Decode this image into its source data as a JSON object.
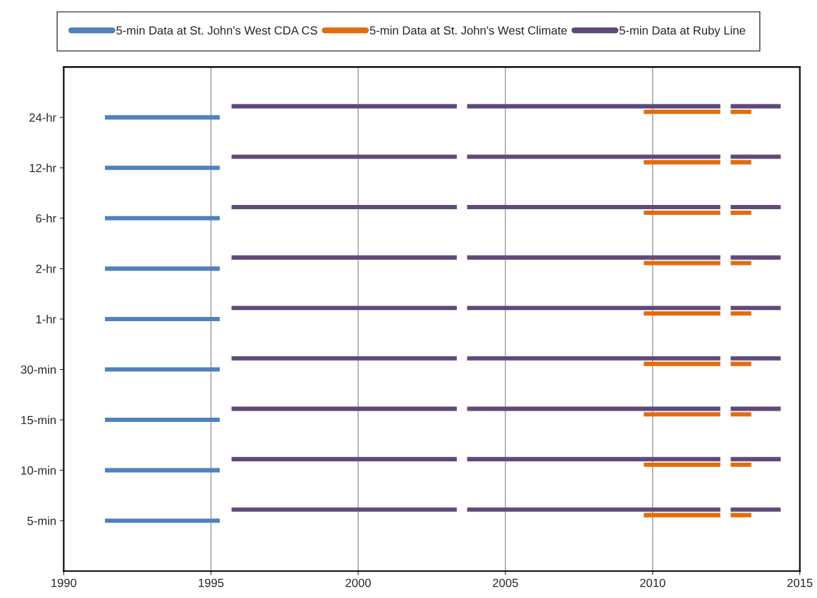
{
  "chart_data": {
    "type": "bar",
    "orientation": "horizontal",
    "categories": [
      "24-hr",
      "12-hr",
      "6-hr",
      "2-hr",
      "1-hr",
      "30-min",
      "15-min",
      "10-min",
      "5-min"
    ],
    "xlim": [
      1990,
      2015
    ],
    "xticks": [
      1990,
      1995,
      2000,
      2005,
      2010,
      2015
    ],
    "grid": "x",
    "legend": "top",
    "series": [
      {
        "name": "5-min Data at St. John's West CDA CS",
        "color": "#4f81bd",
        "base": [
          1991.4,
          1991.4,
          1991.4,
          1991.4,
          1991.4,
          1991.4,
          1991.4,
          1991.4,
          1991.4
        ],
        "values": [
          3.9,
          3.9,
          3.9,
          3.9,
          3.9,
          3.9,
          3.9,
          3.9,
          3.9
        ]
      },
      {
        "name": "5-min Data at St. John's West Climate",
        "color": "#e46c0a",
        "base": [
          2009.7,
          2009.7,
          2009.7,
          2009.7,
          2009.7,
          2009.7,
          2009.7,
          2009.7,
          2009.7
        ],
        "values": [
          2.6,
          2.6,
          2.6,
          2.6,
          2.6,
          2.6,
          2.6,
          2.6,
          2.6
        ]
      },
      {
        "color": "#e46c0a",
        "base": [
          2012.65,
          2012.65,
          2012.65,
          2012.65,
          2012.65,
          2012.65,
          2012.65,
          2012.65,
          2012.65
        ],
        "values": [
          0.7,
          0.7,
          0.7,
          0.7,
          0.7,
          0.7,
          0.7,
          0.7,
          0.7
        ]
      },
      {
        "name": "5-min Data at Ruby Line",
        "color": "#604a7b",
        "base": [
          1995.7,
          1995.7,
          1995.7,
          1995.7,
          1995.7,
          1995.7,
          1995.7,
          1995.7,
          1995.7
        ],
        "values": [
          7.65,
          7.65,
          7.65,
          7.65,
          7.65,
          7.65,
          7.65,
          7.65,
          7.65
        ]
      },
      {
        "color": "#604a7b",
        "base": [
          2003.7,
          2003.7,
          2003.7,
          2003.7,
          2003.7,
          2003.7,
          2003.7,
          2003.7,
          2003.7
        ],
        "values": [
          8.6,
          8.6,
          8.6,
          8.6,
          8.6,
          8.6,
          8.6,
          8.6,
          8.6
        ]
      },
      {
        "color": "#604a7b",
        "base": [
          2012.65,
          2012.65,
          2012.65,
          2012.65,
          2012.65,
          2012.65,
          2012.65,
          2012.65,
          2012.65
        ],
        "values": [
          1.7,
          1.7,
          1.7,
          1.7,
          1.7,
          1.7,
          1.7,
          1.7,
          1.7
        ]
      }
    ]
  }
}
